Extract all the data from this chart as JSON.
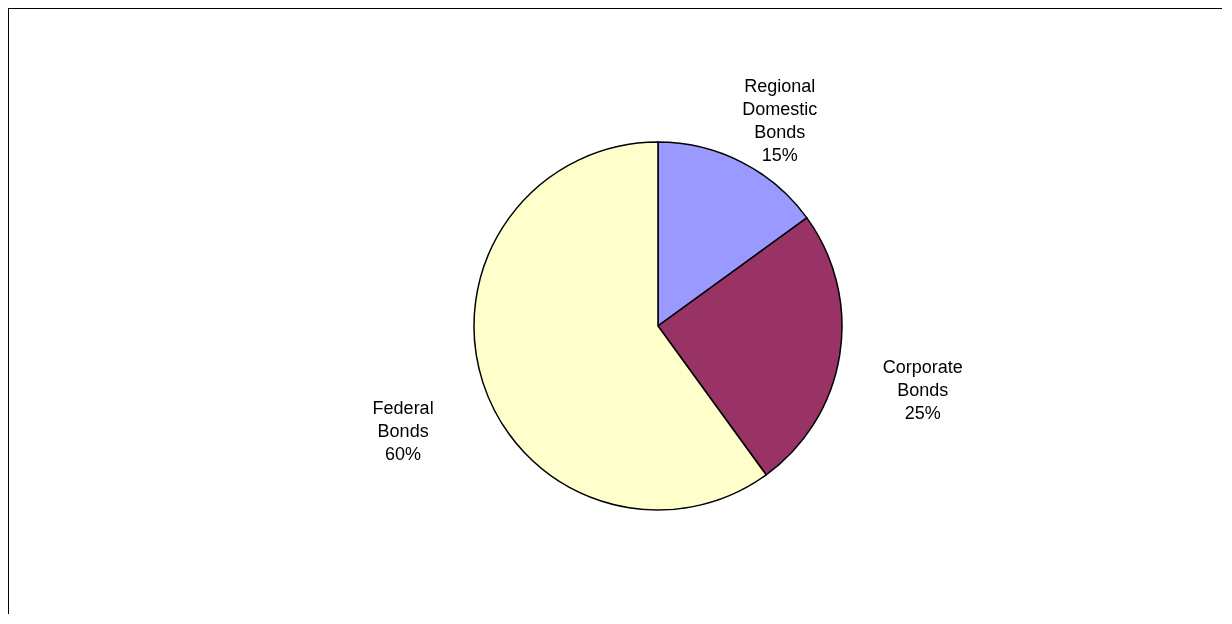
{
  "chart_data": {
    "type": "pie",
    "categories": [
      "Regional Domestic Bonds",
      "Corporate Bonds",
      "Federal Bonds"
    ],
    "values": [
      15,
      25,
      60
    ],
    "value_labels": [
      "15%",
      "25%",
      "60%"
    ],
    "colors": [
      "#9999ff",
      "#993366",
      "#ffffcc"
    ]
  }
}
